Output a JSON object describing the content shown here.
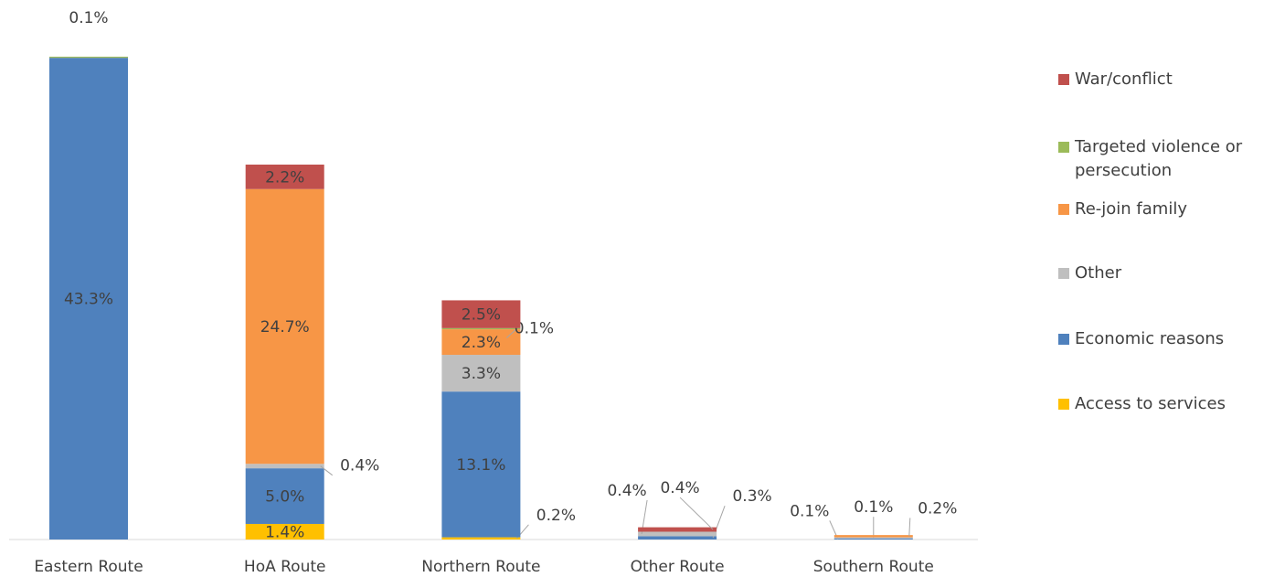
{
  "chart_data": {
    "type": "stacked-bar",
    "categories": [
      "Eastern Route",
      "HoA Route",
      "Northern Route",
      "Other Route",
      "Southern Route"
    ],
    "series": [
      {
        "name": "Access to services",
        "color": "#ffc000",
        "values": [
          null,
          1.4,
          0.2,
          null,
          null
        ],
        "value_labels": [
          null,
          "1.4%",
          "0.2%",
          null,
          null
        ]
      },
      {
        "name": "Economic reasons",
        "color": "#4f81bd",
        "values": [
          43.3,
          5.0,
          13.1,
          0.3,
          0.1
        ],
        "value_labels": [
          "43.3%",
          "5.0%",
          "13.1%",
          "0.3%",
          "0.1%"
        ]
      },
      {
        "name": "Other",
        "color": "#bfbfbf",
        "values": [
          null,
          0.4,
          3.3,
          0.4,
          0.1
        ],
        "value_labels": [
          null,
          "0.4%",
          "3.3%",
          "0.4%",
          "0.1%"
        ]
      },
      {
        "name": "Re-join family",
        "color": "#f79646",
        "values": [
          null,
          24.7,
          2.3,
          null,
          0.2
        ],
        "value_labels": [
          null,
          "24.7%",
          "2.3%",
          null,
          "0.2%"
        ]
      },
      {
        "name": "Targeted violence or persecution",
        "color": "#9bbb59",
        "values": [
          0.1,
          null,
          0.1,
          null,
          null
        ],
        "value_labels": [
          "0.1%",
          null,
          "0.1%",
          null,
          null
        ]
      },
      {
        "name": "War/conflict",
        "color": "#c0504d",
        "values": [
          null,
          2.2,
          2.5,
          0.4,
          null
        ],
        "value_labels": [
          null,
          "2.2%",
          "2.5%",
          "0.4%",
          null
        ]
      }
    ]
  }
}
